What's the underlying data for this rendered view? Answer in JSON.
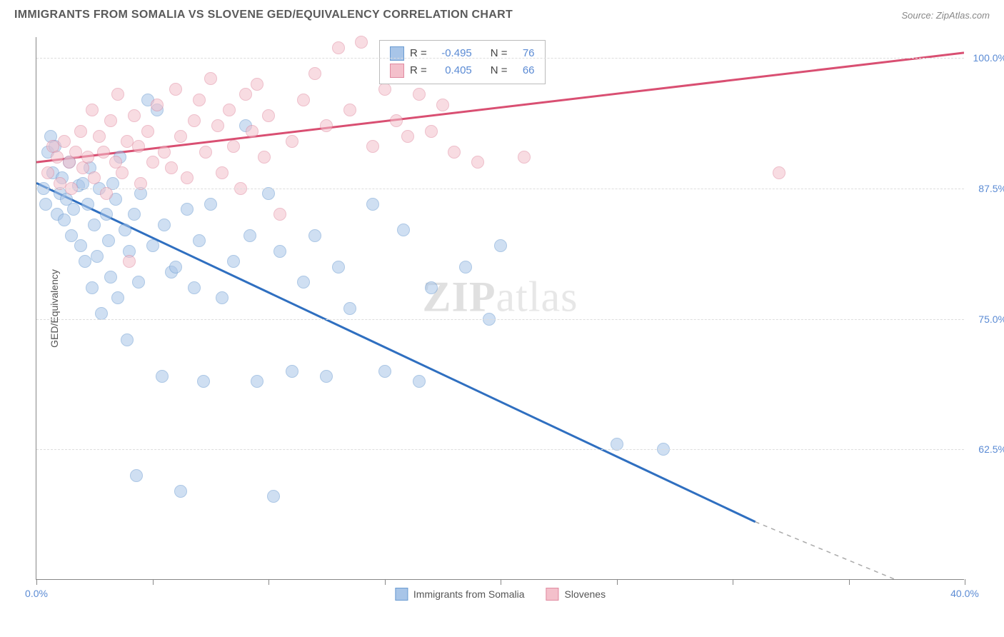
{
  "title": "IMMIGRANTS FROM SOMALIA VS SLOVENE GED/EQUIVALENCY CORRELATION CHART",
  "source_prefix": "Source: ",
  "source_name": "ZipAtlas.com",
  "y_axis_title": "GED/Equivalency",
  "watermark_bold": "ZIP",
  "watermark_light": "atlas",
  "chart": {
    "type": "scatter",
    "background_color": "#ffffff",
    "grid_color": "#dddddd",
    "axis_color": "#888888",
    "tick_label_color": "#5b8bd4",
    "xlim": [
      0,
      40
    ],
    "ylim": [
      50,
      102
    ],
    "x_ticks": [
      0,
      5,
      10,
      15,
      20,
      25,
      30,
      35,
      40
    ],
    "x_tick_labels": {
      "0": "0.0%",
      "40": "40.0%"
    },
    "y_ticks": [
      62.5,
      75.0,
      87.5,
      100.0
    ],
    "y_tick_labels": [
      "62.5%",
      "75.0%",
      "87.5%",
      "100.0%"
    ],
    "point_radius": 9,
    "point_opacity": 0.55,
    "line_width": 3
  },
  "series": [
    {
      "key": "somalia",
      "label": "Immigrants from Somalia",
      "color_fill": "#a8c5e8",
      "color_stroke": "#6a9bd1",
      "line_color": "#2f6fc0",
      "R": "-0.495",
      "N": "76",
      "trend": {
        "x1": 0,
        "y1": 88.0,
        "x2_solid": 31,
        "y2_solid": 55.5,
        "x2_dash": 37,
        "y2_dash": 50.0
      },
      "points": [
        [
          0.3,
          87.5
        ],
        [
          0.4,
          86.0
        ],
        [
          0.5,
          91.0
        ],
        [
          0.6,
          92.5
        ],
        [
          0.7,
          89.0
        ],
        [
          0.8,
          91.5
        ],
        [
          0.9,
          85.0
        ],
        [
          1.0,
          87.0
        ],
        [
          1.1,
          88.5
        ],
        [
          1.2,
          84.5
        ],
        [
          1.3,
          86.5
        ],
        [
          1.4,
          90.0
        ],
        [
          1.5,
          83.0
        ],
        [
          1.6,
          85.5
        ],
        [
          1.8,
          87.8
        ],
        [
          1.9,
          82.0
        ],
        [
          2.0,
          88.0
        ],
        [
          2.1,
          80.5
        ],
        [
          2.2,
          86.0
        ],
        [
          2.3,
          89.5
        ],
        [
          2.4,
          78.0
        ],
        [
          2.5,
          84.0
        ],
        [
          2.6,
          81.0
        ],
        [
          2.7,
          87.5
        ],
        [
          2.8,
          75.5
        ],
        [
          3.0,
          85.0
        ],
        [
          3.1,
          82.5
        ],
        [
          3.2,
          79.0
        ],
        [
          3.3,
          88.0
        ],
        [
          3.4,
          86.5
        ],
        [
          3.5,
          77.0
        ],
        [
          3.6,
          90.5
        ],
        [
          3.8,
          83.5
        ],
        [
          3.9,
          73.0
        ],
        [
          4.0,
          81.5
        ],
        [
          4.2,
          85.0
        ],
        [
          4.3,
          60.0
        ],
        [
          4.4,
          78.5
        ],
        [
          4.5,
          87.0
        ],
        [
          4.8,
          96.0
        ],
        [
          5.0,
          82.0
        ],
        [
          5.2,
          95.0
        ],
        [
          5.4,
          69.5
        ],
        [
          5.5,
          84.0
        ],
        [
          5.8,
          79.5
        ],
        [
          6.0,
          80.0
        ],
        [
          6.2,
          58.5
        ],
        [
          6.5,
          85.5
        ],
        [
          6.8,
          78.0
        ],
        [
          7.0,
          82.5
        ],
        [
          7.2,
          69.0
        ],
        [
          7.5,
          86.0
        ],
        [
          8.0,
          77.0
        ],
        [
          8.5,
          80.5
        ],
        [
          9.0,
          93.5
        ],
        [
          9.2,
          83.0
        ],
        [
          9.5,
          69.0
        ],
        [
          10.0,
          87.0
        ],
        [
          10.2,
          58.0
        ],
        [
          10.5,
          81.5
        ],
        [
          11.0,
          70.0
        ],
        [
          11.5,
          78.5
        ],
        [
          12.0,
          83.0
        ],
        [
          12.5,
          69.5
        ],
        [
          13.0,
          80.0
        ],
        [
          13.5,
          76.0
        ],
        [
          14.5,
          86.0
        ],
        [
          15.0,
          70.0
        ],
        [
          15.8,
          83.5
        ],
        [
          16.5,
          69.0
        ],
        [
          17.0,
          78.0
        ],
        [
          18.5,
          80.0
        ],
        [
          19.5,
          75.0
        ],
        [
          20.0,
          82.0
        ],
        [
          25.0,
          63.0
        ],
        [
          27.0,
          62.5
        ]
      ]
    },
    {
      "key": "slovenes",
      "label": "Slovenes",
      "color_fill": "#f4c0cb",
      "color_stroke": "#e08aa0",
      "line_color": "#d94f72",
      "R": "0.405",
      "N": "66",
      "trend": {
        "x1": 0,
        "y1": 90.0,
        "x2_solid": 40,
        "y2_solid": 100.5,
        "x2_dash": 40,
        "y2_dash": 100.5
      },
      "points": [
        [
          0.5,
          89.0
        ],
        [
          0.7,
          91.5
        ],
        [
          0.9,
          90.5
        ],
        [
          1.0,
          88.0
        ],
        [
          1.2,
          92.0
        ],
        [
          1.4,
          90.0
        ],
        [
          1.5,
          87.5
        ],
        [
          1.7,
          91.0
        ],
        [
          1.9,
          93.0
        ],
        [
          2.0,
          89.5
        ],
        [
          2.2,
          90.5
        ],
        [
          2.4,
          95.0
        ],
        [
          2.5,
          88.5
        ],
        [
          2.7,
          92.5
        ],
        [
          2.9,
          91.0
        ],
        [
          3.0,
          87.0
        ],
        [
          3.2,
          94.0
        ],
        [
          3.4,
          90.0
        ],
        [
          3.5,
          96.5
        ],
        [
          3.7,
          89.0
        ],
        [
          3.9,
          92.0
        ],
        [
          4.0,
          80.5
        ],
        [
          4.2,
          94.5
        ],
        [
          4.4,
          91.5
        ],
        [
          4.5,
          88.0
        ],
        [
          4.8,
          93.0
        ],
        [
          5.0,
          90.0
        ],
        [
          5.2,
          95.5
        ],
        [
          5.5,
          91.0
        ],
        [
          5.8,
          89.5
        ],
        [
          6.0,
          97.0
        ],
        [
          6.2,
          92.5
        ],
        [
          6.5,
          88.5
        ],
        [
          6.8,
          94.0
        ],
        [
          7.0,
          96.0
        ],
        [
          7.3,
          91.0
        ],
        [
          7.5,
          98.0
        ],
        [
          7.8,
          93.5
        ],
        [
          8.0,
          89.0
        ],
        [
          8.3,
          95.0
        ],
        [
          8.5,
          91.5
        ],
        [
          8.8,
          87.5
        ],
        [
          9.0,
          96.5
        ],
        [
          9.3,
          93.0
        ],
        [
          9.5,
          97.5
        ],
        [
          9.8,
          90.5
        ],
        [
          10.0,
          94.5
        ],
        [
          10.5,
          85.0
        ],
        [
          11.0,
          92.0
        ],
        [
          11.5,
          96.0
        ],
        [
          12.0,
          98.5
        ],
        [
          12.5,
          93.5
        ],
        [
          13.0,
          101.0
        ],
        [
          13.5,
          95.0
        ],
        [
          14.0,
          101.5
        ],
        [
          14.5,
          91.5
        ],
        [
          15.0,
          97.0
        ],
        [
          15.5,
          94.0
        ],
        [
          16.0,
          92.5
        ],
        [
          16.5,
          96.5
        ],
        [
          17.0,
          93.0
        ],
        [
          17.5,
          95.5
        ],
        [
          18.0,
          91.0
        ],
        [
          19.0,
          90.0
        ],
        [
          21.0,
          90.5
        ],
        [
          32.0,
          89.0
        ]
      ]
    }
  ],
  "correlation_box": {
    "R_label": "R =",
    "N_label": "N ="
  }
}
